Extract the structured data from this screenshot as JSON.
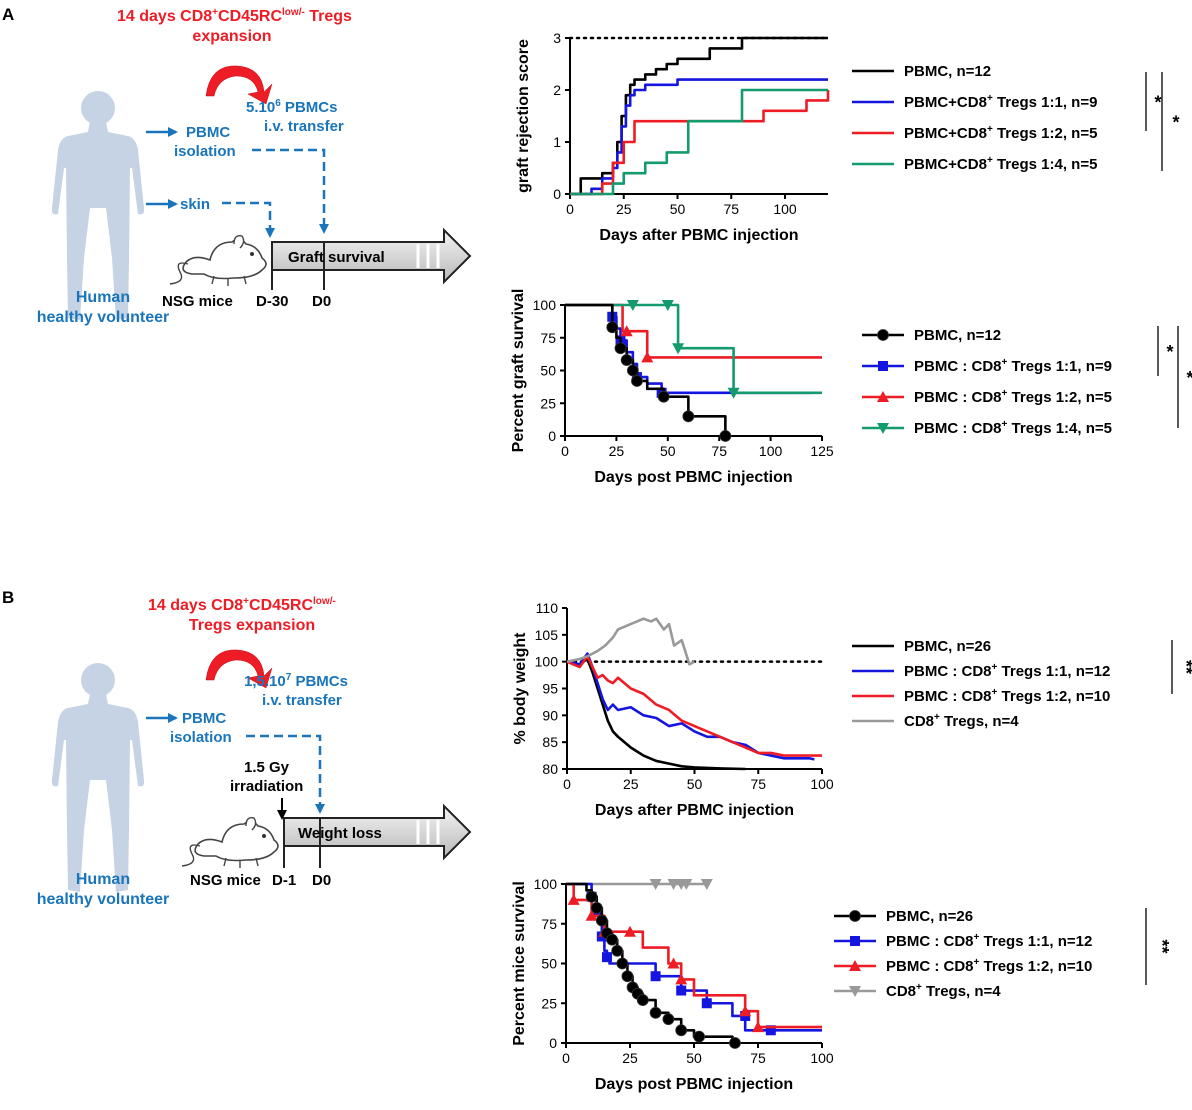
{
  "panels": {
    "A": {
      "label": "A",
      "expansion_line1": "14 days CD8",
      "expansion_sup1": "+",
      "expansion_line1b": "CD45RC",
      "expansion_sup2": "low/-",
      "expansion_line1c": " Tregs",
      "expansion_line2": "expansion",
      "dose_main": "5.10",
      "dose_sup": "6",
      "dose_suffix": " PBMCs",
      "transfer": "i.v. transfer",
      "pbmc1": "PBMC",
      "pbmc2": "isolation",
      "skin": "skin",
      "timeline_label": "Graft survival",
      "day_start": "D-30",
      "day_zero": "D0",
      "mice": "NSG mice",
      "human1": "Human",
      "human2": "healthy volunteer"
    },
    "B": {
      "label": "B",
      "expansion_line1": "14 days CD8",
      "expansion_sup1": "+",
      "expansion_line1b": "CD45RC",
      "expansion_sup2": "low/-",
      "expansion_line2": "Tregs expansion",
      "dose_main": "1,5.10",
      "dose_sup": "7",
      "dose_suffix": " PBMCs",
      "transfer": "i.v. transfer",
      "pbmc1": "PBMC",
      "pbmc2": "isolation",
      "irr1": "1.5 Gy",
      "irr2": "irradiation",
      "timeline_label": "Weight loss",
      "day_start": "D-1",
      "day_zero": "D0",
      "mice": "NSG mice",
      "human1": "Human",
      "human2": "healthy volunteer"
    }
  },
  "colors": {
    "black": "#000000",
    "blue": "#1515e0",
    "red": "#ee1c25",
    "green": "#139a6e",
    "gray": "#999999",
    "schema_blue": "#1a75bb"
  },
  "chart_data": [
    {
      "id": "A1",
      "type": "line",
      "step": true,
      "xlabel": "Days after PBMC injection",
      "ylabel": "graft rejection score",
      "xlim": [
        0,
        120
      ],
      "ylim": [
        0,
        3
      ],
      "xticks": [
        0,
        25,
        50,
        75,
        100
      ],
      "yticks": [
        0,
        1,
        2,
        3
      ],
      "reference_line": 3,
      "series": [
        {
          "name": "PBMC, n=12",
          "color": "black",
          "x": [
            0,
            5,
            10,
            15,
            20,
            22,
            24,
            26,
            28,
            30,
            35,
            40,
            45,
            50,
            55,
            65,
            70,
            80,
            120
          ],
          "y": [
            0,
            0.3,
            0.3,
            0.4,
            0.6,
            1.0,
            1.5,
            1.9,
            2.1,
            2.2,
            2.3,
            2.4,
            2.5,
            2.6,
            2.6,
            2.8,
            2.8,
            3,
            3
          ]
        },
        {
          "name": "PBMC+CD8+ Tregs 1:1, n=9",
          "color": "blue",
          "x": [
            0,
            10,
            15,
            20,
            22,
            24,
            26,
            28,
            30,
            35,
            40,
            50,
            60,
            120
          ],
          "y": [
            0,
            0.1,
            0.3,
            0.5,
            0.8,
            1.3,
            1.7,
            1.9,
            2.0,
            2.1,
            2.1,
            2.2,
            2.2,
            2.2
          ]
        },
        {
          "name": "PBMC+CD8+ Tregs 1:2, n=5",
          "color": "red",
          "x": [
            0,
            15,
            20,
            25,
            30,
            60,
            70,
            80,
            90,
            110,
            120
          ],
          "y": [
            0,
            0.2,
            0.6,
            1.0,
            1.4,
            1.4,
            1.4,
            1.4,
            1.6,
            1.8,
            2.0
          ]
        },
        {
          "name": "PBMC+CD8+ Tregs 1:4, n=5",
          "color": "green",
          "x": [
            0,
            20,
            25,
            30,
            35,
            45,
            55,
            60,
            80,
            120
          ],
          "y": [
            0,
            0.2,
            0.4,
            0.4,
            0.6,
            0.8,
            1.4,
            1.4,
            2.0,
            2.0
          ]
        }
      ],
      "significance": [
        "*",
        "*"
      ]
    },
    {
      "id": "A2",
      "type": "line",
      "step": true,
      "xlabel": "Days post PBMC injection",
      "ylabel": "Percent graft survival",
      "xlim": [
        0,
        125
      ],
      "ylim": [
        0,
        100
      ],
      "xticks": [
        0,
        25,
        50,
        75,
        100,
        125
      ],
      "yticks": [
        0,
        25,
        50,
        75,
        100
      ],
      "series": [
        {
          "name": "PBMC : CD8+ Tregs 1:1, n=9",
          "color": "blue",
          "marker": "square",
          "x": [
            0,
            23,
            25,
            27,
            30,
            33,
            35,
            40,
            47,
            120
          ],
          "y": [
            100,
            91,
            82,
            73,
            64,
            55,
            45,
            40,
            33,
            33
          ],
          "marks_x": [
            23,
            27,
            35,
            47
          ],
          "marks_y": [
            91,
            73,
            45,
            33
          ]
        },
        {
          "name": "PBMC : CD8+ Tregs 1:2, n=5",
          "color": "red",
          "marker": "triangle",
          "x": [
            0,
            28,
            35,
            40,
            125
          ],
          "y": [
            100,
            80,
            80,
            60,
            60
          ],
          "marks_x": [
            30,
            40
          ],
          "marks_y": [
            80,
            60
          ]
        },
        {
          "name": "PBMC : CD8+ Tregs 1:4, n=5",
          "color": "green",
          "marker": "triangle-down",
          "x": [
            0,
            55,
            82,
            125
          ],
          "y": [
            100,
            67,
            33,
            33
          ],
          "marks_x": [
            33,
            50,
            55,
            82
          ],
          "marks_y": [
            100,
            100,
            67,
            33
          ]
        },
        {
          "name": "PBMC, n=12",
          "color": "black",
          "marker": "circle",
          "x": [
            0,
            23,
            25,
            27,
            30,
            33,
            35,
            40,
            48,
            60,
            78
          ],
          "y": [
            100,
            83,
            75,
            67,
            58,
            50,
            42,
            36,
            30,
            15,
            0
          ],
          "marks_x": [
            23,
            27,
            30,
            33,
            35,
            48,
            60,
            78
          ],
          "marks_y": [
            83,
            67,
            58,
            50,
            42,
            30,
            15,
            0
          ]
        }
      ],
      "significance": [
        "*",
        "*"
      ]
    },
    {
      "id": "B1",
      "type": "line",
      "xlabel": "Days after PBMC injection",
      "ylabel": "% body weight",
      "xlim": [
        0,
        100
      ],
      "ylim": [
        80,
        110
      ],
      "xticks": [
        0,
        25,
        50,
        75,
        100
      ],
      "yticks": [
        80,
        85,
        90,
        95,
        100,
        105,
        110
      ],
      "reference_line": 100,
      "series": [
        {
          "name": "PBMC, n=26",
          "color": "black",
          "x": [
            0,
            5,
            8,
            10,
            12,
            14,
            16,
            18,
            20,
            25,
            30,
            35,
            40,
            45,
            50,
            55,
            60,
            70
          ],
          "y": [
            100,
            99.5,
            100.5,
            98,
            95,
            92,
            89,
            87,
            86,
            84,
            82.5,
            81.5,
            81,
            80.5,
            80.3,
            80.2,
            80.1,
            80
          ]
        },
        {
          "name": "PBMC : CD8+ Tregs 1:1, n=12",
          "color": "blue",
          "x": [
            0,
            5,
            8,
            10,
            12,
            14,
            16,
            18,
            20,
            25,
            30,
            35,
            40,
            45,
            50,
            55,
            60,
            65,
            70,
            75,
            80,
            85,
            90,
            95,
            97
          ],
          "y": [
            100,
            99.5,
            101.5,
            99,
            96,
            93,
            91,
            92,
            91,
            91.5,
            90,
            89.5,
            88,
            88.5,
            87,
            86,
            86,
            85,
            84.5,
            83,
            82.5,
            82,
            82,
            82,
            81.8
          ]
        },
        {
          "name": "PBMC : CD8+ Tregs 1:2, n=10",
          "color": "red",
          "x": [
            0,
            5,
            8,
            10,
            12,
            14,
            16,
            18,
            20,
            25,
            30,
            35,
            40,
            45,
            50,
            55,
            60,
            65,
            70,
            75,
            80,
            85,
            90,
            95,
            100
          ],
          "y": [
            100,
            99,
            101,
            99,
            97,
            97.5,
            96.5,
            96,
            97,
            95,
            94,
            92,
            91,
            89,
            88,
            87,
            86,
            85,
            84,
            83,
            83,
            82.5,
            82.5,
            82.5,
            82.5
          ]
        },
        {
          "name": "CD8+ Tregs, n=4",
          "color": "gray",
          "x": [
            0,
            5,
            8,
            10,
            12,
            15,
            18,
            20,
            25,
            30,
            33,
            35,
            38,
            40,
            42,
            45,
            48,
            50
          ],
          "y": [
            100,
            100.5,
            101,
            101.5,
            102,
            103,
            104.5,
            106,
            107,
            108,
            107.5,
            108,
            106,
            107,
            103,
            104,
            99.5,
            100
          ]
        }
      ],
      "significance": [
        "**"
      ]
    },
    {
      "id": "B2",
      "type": "line",
      "step": true,
      "xlabel": "Days post PBMC injection",
      "ylabel": "Percent mice survival",
      "xlim": [
        0,
        100
      ],
      "ylim": [
        0,
        100
      ],
      "xticks": [
        0,
        25,
        50,
        75,
        100
      ],
      "yticks": [
        0,
        25,
        50,
        75,
        100
      ],
      "series": [
        {
          "name": "CD8+ Tregs, n=4",
          "color": "gray",
          "marker": "triangle-down",
          "x": [
            0,
            55
          ],
          "y": [
            100,
            100
          ],
          "marks_x": [
            35,
            42,
            45,
            47,
            55
          ],
          "marks_y": [
            100,
            100,
            100,
            100,
            100
          ]
        },
        {
          "name": "PBMC : CD8+ Tregs 1:1, n=12",
          "color": "blue",
          "marker": "square",
          "x": [
            0,
            10,
            12,
            13,
            14,
            15,
            16,
            17,
            18,
            20,
            35,
            40,
            45,
            50,
            55,
            60,
            65,
            70,
            80,
            100
          ],
          "y": [
            100,
            92,
            83,
            75,
            67,
            58,
            54,
            50,
            50,
            50,
            42,
            42,
            33,
            33,
            25,
            25,
            17,
            8,
            8,
            8
          ],
          "marks_x": [
            10,
            12,
            14,
            16,
            35,
            45,
            55,
            70,
            80
          ],
          "marks_y": [
            92,
            83,
            67,
            54,
            42,
            33,
            25,
            17,
            8
          ]
        },
        {
          "name": "PBMC : CD8+ Tregs 1:2, n=10",
          "color": "red",
          "marker": "triangle",
          "x": [
            0,
            3,
            10,
            15,
            22,
            30,
            40,
            45,
            50,
            70,
            75,
            100
          ],
          "y": [
            100,
            90,
            80,
            70,
            70,
            60,
            50,
            40,
            30,
            20,
            10,
            10
          ],
          "marks_x": [
            3,
            10,
            15,
            25,
            42,
            45,
            70,
            75
          ],
          "marks_y": [
            90,
            80,
            70,
            70,
            50,
            40,
            20,
            10
          ]
        },
        {
          "name": "PBMC, n=26",
          "color": "black",
          "marker": "circle",
          "x": [
            0,
            8,
            10,
            12,
            14,
            16,
            18,
            20,
            22,
            24,
            26,
            28,
            30,
            35,
            40,
            45,
            50,
            55,
            60,
            65
          ],
          "y": [
            100,
            96,
            92,
            85,
            77,
            69,
            65,
            58,
            50,
            42,
            35,
            31,
            27,
            19,
            15,
            8,
            4,
            4,
            4,
            0
          ],
          "marks_x": [
            10,
            12,
            14,
            16,
            18,
            20,
            22,
            24,
            26,
            28,
            30,
            35,
            40,
            45,
            52,
            66
          ],
          "marks_y": [
            92,
            85,
            77,
            69,
            65,
            58,
            50,
            42,
            35,
            31,
            27,
            19,
            15,
            8,
            4,
            0
          ]
        }
      ],
      "significance": [
        "**"
      ]
    }
  ],
  "legends": [
    {
      "chart": "A1",
      "items": [
        {
          "color": "black",
          "text": "PBMC, n=12"
        },
        {
          "color": "blue",
          "text_pre": "PBMC+CD8",
          "sup": "+",
          "text_post": " Tregs 1:1, n=9"
        },
        {
          "color": "red",
          "text_pre": "PBMC+CD8",
          "sup": "+",
          "text_post": " Tregs 1:2, n=5"
        },
        {
          "color": "green",
          "text_pre": "PBMC+CD8",
          "sup": "+",
          "text_post": " Tregs 1:4, n=5"
        }
      ]
    },
    {
      "chart": "A2",
      "items": [
        {
          "color": "black",
          "marker": "circle",
          "text": "PBMC, n=12"
        },
        {
          "color": "blue",
          "marker": "square",
          "text_pre": "PBMC : CD8",
          "sup": "+",
          "text_post": " Tregs 1:1, n=9"
        },
        {
          "color": "red",
          "marker": "triangle",
          "text_pre": "PBMC : CD8",
          "sup": "+",
          "text_post": " Tregs 1:2, n=5"
        },
        {
          "color": "green",
          "marker": "triangle-down",
          "text_pre": "PBMC : CD8",
          "sup": "+",
          "text_post": " Tregs 1:4, n=5"
        }
      ]
    },
    {
      "chart": "B1",
      "items": [
        {
          "color": "black",
          "text": "PBMC, n=26"
        },
        {
          "color": "blue",
          "text_pre": "PBMC : CD8",
          "sup": "+",
          "text_post": " Tregs 1:1, n=12"
        },
        {
          "color": "red",
          "text_pre": "PBMC : CD8",
          "sup": "+",
          "text_post": " Tregs 1:2, n=10"
        },
        {
          "color": "gray",
          "text_pre": "CD8",
          "sup": "+",
          "text_post": " Tregs, n=4"
        }
      ]
    },
    {
      "chart": "B2",
      "items": [
        {
          "color": "black",
          "marker": "circle",
          "text": "PBMC, n=26"
        },
        {
          "color": "blue",
          "marker": "square",
          "text_pre": "PBMC : CD8",
          "sup": "+",
          "text_post": " Tregs 1:1, n=12"
        },
        {
          "color": "red",
          "marker": "triangle",
          "text_pre": "PBMC : CD8",
          "sup": "+",
          "text_post": " Tregs 1:2, n=10"
        },
        {
          "color": "gray",
          "marker": "triangle-down",
          "text_pre": "CD8",
          "sup": "+",
          "text_post": " Tregs, n=4"
        }
      ]
    }
  ]
}
